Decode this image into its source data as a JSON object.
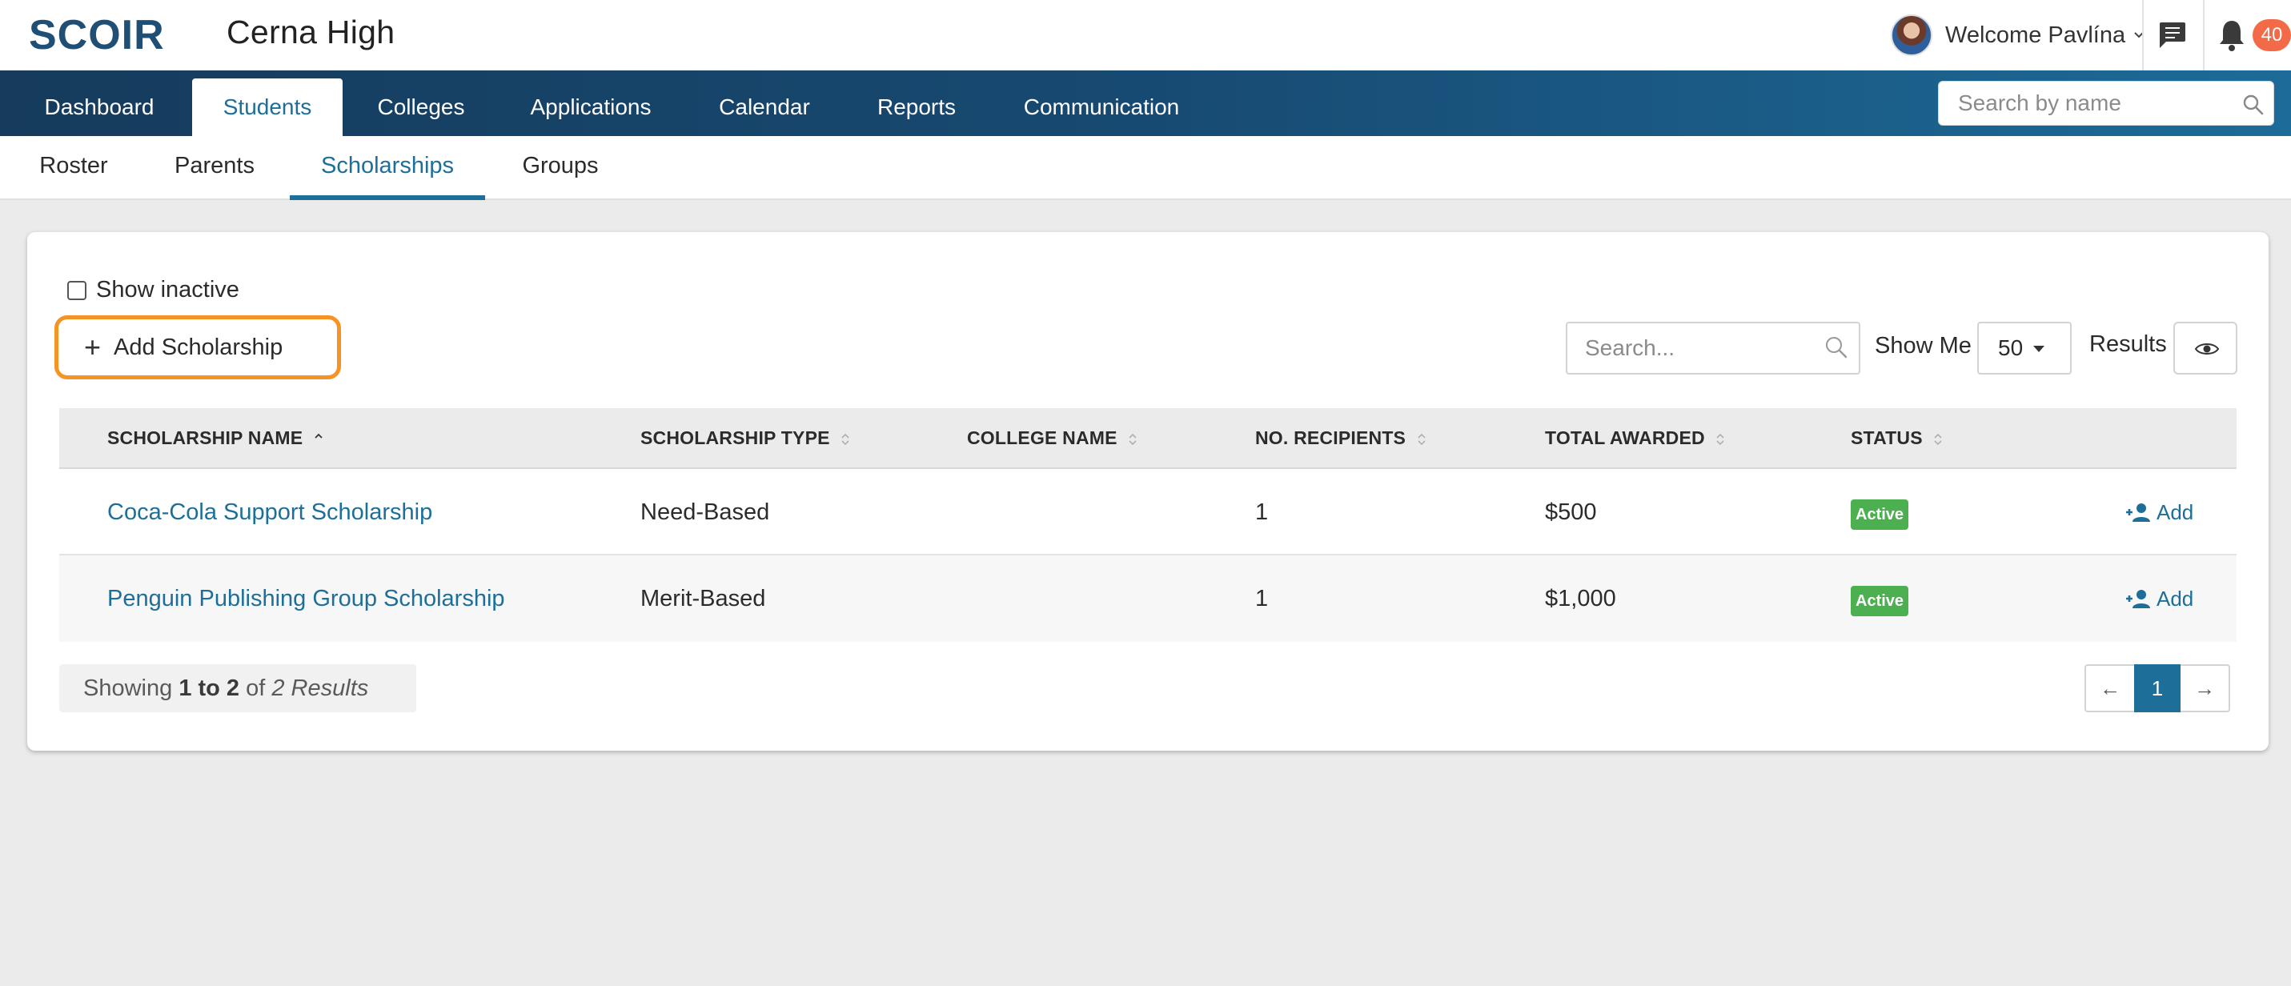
{
  "header": {
    "logo_text": "SCOIR",
    "school_name": "Cerna High",
    "welcome": "Welcome Pavlína",
    "notification_count": "40",
    "icons": {
      "messages": "chat-icon",
      "notifications": "bell-icon",
      "user_menu": "chevron-down-icon"
    }
  },
  "main_nav": {
    "tabs": [
      {
        "label": "Dashboard"
      },
      {
        "label": "Students"
      },
      {
        "label": "Colleges"
      },
      {
        "label": "Applications"
      },
      {
        "label": "Calendar"
      },
      {
        "label": "Reports"
      },
      {
        "label": "Communication"
      }
    ],
    "active": "Students",
    "search_placeholder": "Search by name"
  },
  "sub_nav": {
    "tabs": [
      {
        "label": "Roster"
      },
      {
        "label": "Parents"
      },
      {
        "label": "Scholarships"
      },
      {
        "label": "Groups"
      }
    ],
    "active": "Scholarships"
  },
  "toolbar": {
    "show_inactive_label": "Show inactive",
    "show_inactive_checked": false,
    "add_button_label": "Add Scholarship",
    "search_placeholder": "Search...",
    "show_me_label": "Show Me",
    "show_me_value": "50",
    "results_label": "Results"
  },
  "table": {
    "columns": [
      {
        "label": "SCHOLARSHIP NAME",
        "sort": "ascending"
      },
      {
        "label": "SCHOLARSHIP TYPE",
        "sort": "none"
      },
      {
        "label": "COLLEGE NAME",
        "sort": "none"
      },
      {
        "label": "NO. RECIPIENTS",
        "sort": "none"
      },
      {
        "label": "TOTAL AWARDED",
        "sort": "none"
      },
      {
        "label": "STATUS",
        "sort": "none"
      }
    ],
    "rows": [
      {
        "name": "Coca-Cola Support Scholarship",
        "type": "Need-Based",
        "college": "",
        "recipients": "1",
        "total": "$500",
        "status": "Active",
        "action": "Add"
      },
      {
        "name": "Penguin Publishing Group Scholarship",
        "type": "Merit-Based",
        "college": "",
        "recipients": "1",
        "total": "$1,000",
        "status": "Active",
        "action": "Add"
      }
    ]
  },
  "footer": {
    "showing_prefix": "Showing",
    "showing_range": "1 to 2",
    "showing_of": "of",
    "showing_total": "2 Results",
    "pager": {
      "prev": "←",
      "current": "1",
      "next": "→"
    }
  },
  "colors": {
    "brand": "#1d6f99",
    "nav_dark": "#163b5c",
    "highlight": "#f59324",
    "status_active": "#4caf50",
    "badge": "#f26a48"
  }
}
